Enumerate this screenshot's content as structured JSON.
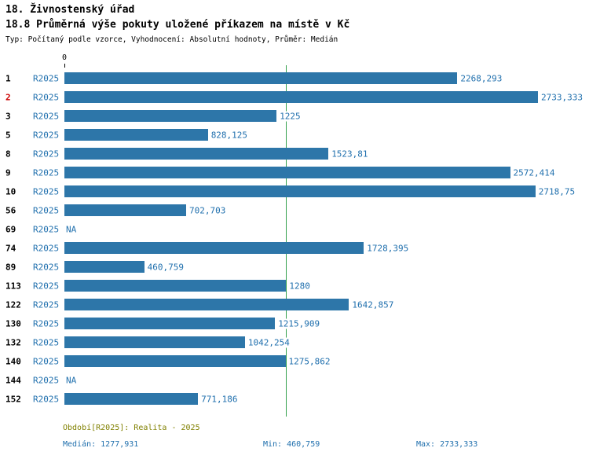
{
  "header": {
    "title": "18. Živnostenský úřad",
    "subtitle": "18.8 Průměrná výše pokuty uložené příkazem na místě v Kč",
    "meta": "Typ: Počítaný podle vzorce, Vyhodnocení: Absolutní hodnoty, Průměr: Medián"
  },
  "chart": {
    "axis_zero_label": "0",
    "series_label": "R2025",
    "na_label": "NA",
    "max_value": 2733.333,
    "median_value": 1277.931,
    "colors": {
      "bar": "#2d76a9",
      "blue_text": "#1f6fad",
      "row_highlight": "#cc0000",
      "median_line": "#33a04c",
      "period_text": "#808000"
    },
    "rows": [
      {
        "id": "1",
        "value": 2268.293,
        "label": "2268,293"
      },
      {
        "id": "2",
        "value": 2733.333,
        "label": "2733,333",
        "highlight": true
      },
      {
        "id": "3",
        "value": 1225,
        "label": "1225"
      },
      {
        "id": "5",
        "value": 828.125,
        "label": "828,125"
      },
      {
        "id": "8",
        "value": 1523.81,
        "label": "1523,81"
      },
      {
        "id": "9",
        "value": 2572.414,
        "label": "2572,414"
      },
      {
        "id": "10",
        "value": 2718.75,
        "label": "2718,75"
      },
      {
        "id": "56",
        "value": 702.703,
        "label": "702,703"
      },
      {
        "id": "69",
        "value": null,
        "label": "NA"
      },
      {
        "id": "74",
        "value": 1728.395,
        "label": "1728,395"
      },
      {
        "id": "89",
        "value": 460.759,
        "label": "460,759"
      },
      {
        "id": "113",
        "value": 1280,
        "label": "1280"
      },
      {
        "id": "122",
        "value": 1642.857,
        "label": "1642,857"
      },
      {
        "id": "130",
        "value": 1215.909,
        "label": "1215,909"
      },
      {
        "id": "132",
        "value": 1042.254,
        "label": "1042,254"
      },
      {
        "id": "140",
        "value": 1275.862,
        "label": "1275,862"
      },
      {
        "id": "144",
        "value": null,
        "label": "NA"
      },
      {
        "id": "152",
        "value": 771.186,
        "label": "771,186"
      }
    ]
  },
  "footer": {
    "period": "Období[R2025]: Realita - 2025",
    "median": "Medián: 1277,931",
    "min": "Min: 460,759",
    "max": "Max: 2733,333"
  },
  "chart_data": {
    "type": "bar",
    "orientation": "horizontal",
    "title": "18.8 Průměrná výše pokuty uložené příkazem na místě v Kč",
    "categories": [
      "1",
      "2",
      "3",
      "5",
      "8",
      "9",
      "10",
      "56",
      "69",
      "74",
      "89",
      "113",
      "122",
      "130",
      "132",
      "140",
      "144",
      "152"
    ],
    "series": [
      {
        "name": "R2025",
        "values": [
          2268.293,
          2733.333,
          1225,
          828.125,
          1523.81,
          2572.414,
          2718.75,
          702.703,
          null,
          1728.395,
          460.759,
          1280,
          1642.857,
          1215.909,
          1042.254,
          1275.862,
          null,
          771.186
        ]
      }
    ],
    "value_labels": [
      "2268,293",
      "2733,333",
      "1225",
      "828,125",
      "1523,81",
      "2572,414",
      "2718,75",
      "702,703",
      "NA",
      "1728,395",
      "460,759",
      "1280",
      "1642,857",
      "1215,909",
      "1042,254",
      "1275,862",
      "NA",
      "771,186"
    ],
    "xlim": [
      0,
      2733.333
    ],
    "x_tick_labels": [
      "0"
    ],
    "median": 1277.931,
    "min": 460.759,
    "max": 2733.333,
    "legend": "none",
    "grid": false,
    "annotations": [
      "vertical median reference line at 1277,931"
    ]
  }
}
